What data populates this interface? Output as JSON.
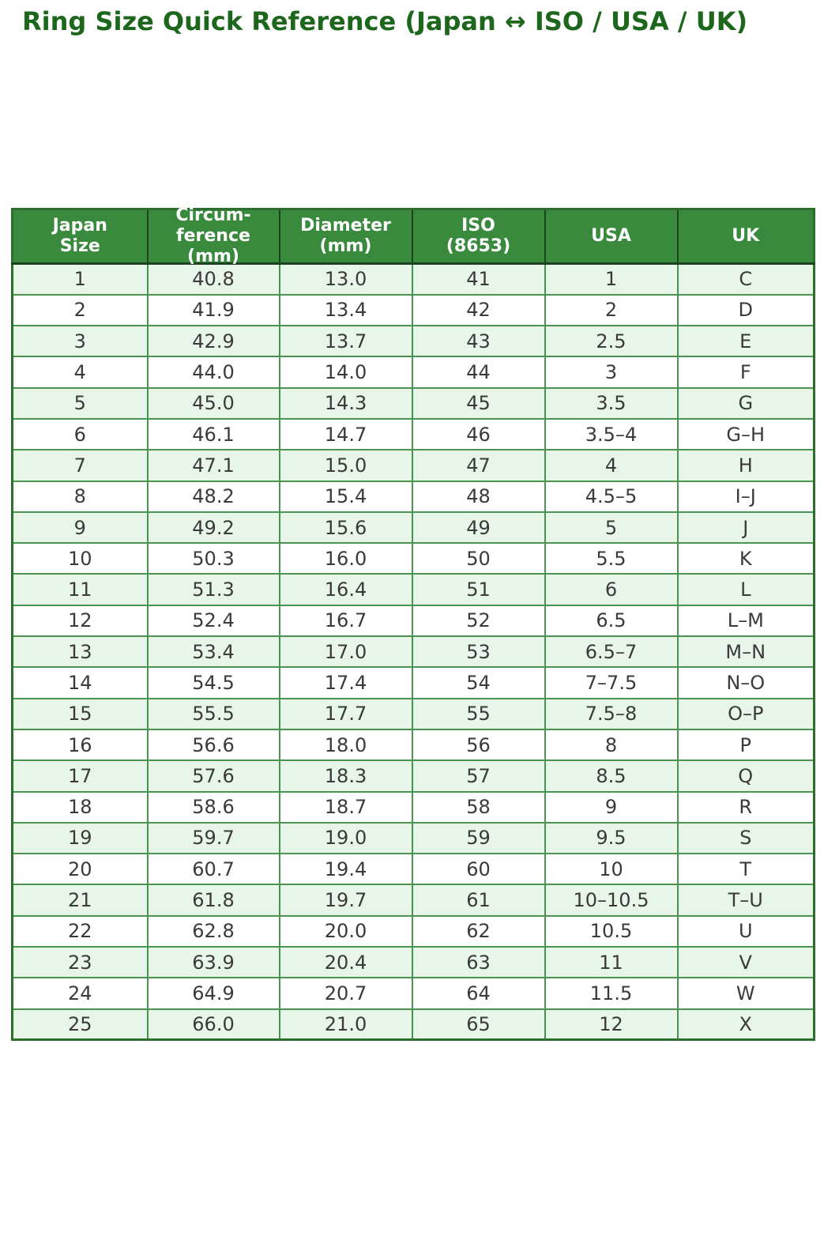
{
  "page": {
    "title": "Ring Size Quick Reference (Japan ↔ ISO / USA / UK)"
  },
  "colors": {
    "title": "#1d671d",
    "header_bg": "#3a8a3e",
    "header_text": "#ffffff",
    "row_alt_bg": "#e8f5e9",
    "row_bg": "#ffffff",
    "inner_border": "#4a9350",
    "outer_border": "#2b6e2e",
    "header_border": "#1c4220",
    "cell_text": "#3a3a3a"
  },
  "table": {
    "header_lines": [
      [
        "Japan",
        "Size"
      ],
      [
        "Circum-",
        "ference",
        "(mm)"
      ],
      [
        "Diameter",
        "(mm)"
      ],
      [
        "ISO",
        "(8653)"
      ],
      [
        "USA"
      ],
      [
        "UK"
      ]
    ]
  },
  "chart_data": {
    "type": "table",
    "title": "Ring Size Quick Reference (Japan ↔ ISO / USA / UK)",
    "columns": [
      "Japan Size",
      "Circumference (mm)",
      "Diameter (mm)",
      "ISO (8653)",
      "USA",
      "UK"
    ],
    "rows": [
      [
        "1",
        "40.8",
        "13.0",
        "41",
        "1",
        "C"
      ],
      [
        "2",
        "41.9",
        "13.4",
        "42",
        "2",
        "D"
      ],
      [
        "3",
        "42.9",
        "13.7",
        "43",
        "2.5",
        "E"
      ],
      [
        "4",
        "44.0",
        "14.0",
        "44",
        "3",
        "F"
      ],
      [
        "5",
        "45.0",
        "14.3",
        "45",
        "3.5",
        "G"
      ],
      [
        "6",
        "46.1",
        "14.7",
        "46",
        "3.5–4",
        "G–H"
      ],
      [
        "7",
        "47.1",
        "15.0",
        "47",
        "4",
        "H"
      ],
      [
        "8",
        "48.2",
        "15.4",
        "48",
        "4.5–5",
        "I–J"
      ],
      [
        "9",
        "49.2",
        "15.6",
        "49",
        "5",
        "J"
      ],
      [
        "10",
        "50.3",
        "16.0",
        "50",
        "5.5",
        "K"
      ],
      [
        "11",
        "51.3",
        "16.4",
        "51",
        "6",
        "L"
      ],
      [
        "12",
        "52.4",
        "16.7",
        "52",
        "6.5",
        "L–M"
      ],
      [
        "13",
        "53.4",
        "17.0",
        "53",
        "6.5–7",
        "M–N"
      ],
      [
        "14",
        "54.5",
        "17.4",
        "54",
        "7–7.5",
        "N–O"
      ],
      [
        "15",
        "55.5",
        "17.7",
        "55",
        "7.5–8",
        "O–P"
      ],
      [
        "16",
        "56.6",
        "18.0",
        "56",
        "8",
        "P"
      ],
      [
        "17",
        "57.6",
        "18.3",
        "57",
        "8.5",
        "Q"
      ],
      [
        "18",
        "58.6",
        "18.7",
        "58",
        "9",
        "R"
      ],
      [
        "19",
        "59.7",
        "19.0",
        "59",
        "9.5",
        "S"
      ],
      [
        "20",
        "60.7",
        "19.4",
        "60",
        "10",
        "T"
      ],
      [
        "21",
        "61.8",
        "19.7",
        "61",
        "10–10.5",
        "T–U"
      ],
      [
        "22",
        "62.8",
        "20.0",
        "62",
        "10.5",
        "U"
      ],
      [
        "23",
        "63.9",
        "20.4",
        "63",
        "11",
        "V"
      ],
      [
        "24",
        "64.9",
        "20.7",
        "64",
        "11.5",
        "W"
      ],
      [
        "25",
        "66.0",
        "21.0",
        "65",
        "12",
        "X"
      ]
    ]
  }
}
